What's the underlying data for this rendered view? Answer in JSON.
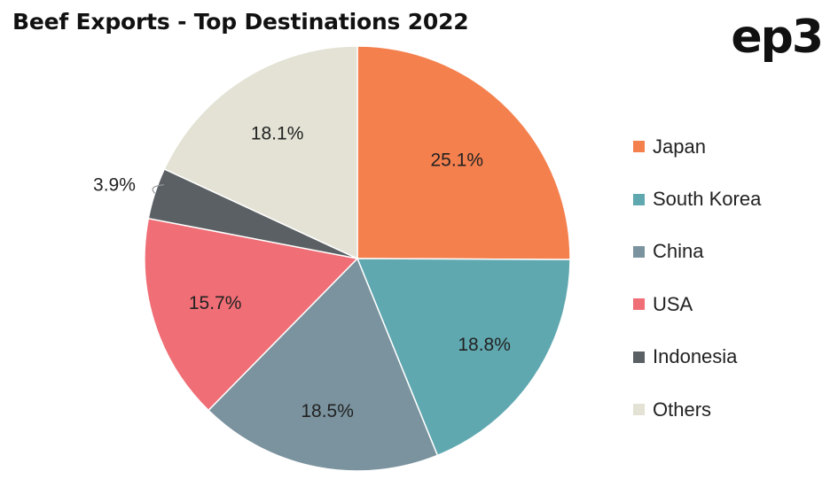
{
  "chart_data": {
    "type": "pie",
    "title": "Beef Exports - Top Destinations 2022",
    "categories": [
      "Japan",
      "South Korea",
      "China",
      "USA",
      "Indonesia",
      "Others"
    ],
    "values": [
      25.1,
      18.8,
      18.5,
      15.7,
      3.9,
      18.1
    ],
    "value_labels": [
      "25.1%",
      "18.8%",
      "18.5%",
      "15.7%",
      "3.9%",
      "18.1%"
    ],
    "colors": [
      "#F4804E",
      "#60A8B0",
      "#7A939E",
      "#F06E76",
      "#5B6064",
      "#E3E2D5"
    ],
    "start_angle": "12 o'clock",
    "direction": "clockwise",
    "legend_position": "right"
  },
  "brand": {
    "logo_text": "ep3"
  }
}
